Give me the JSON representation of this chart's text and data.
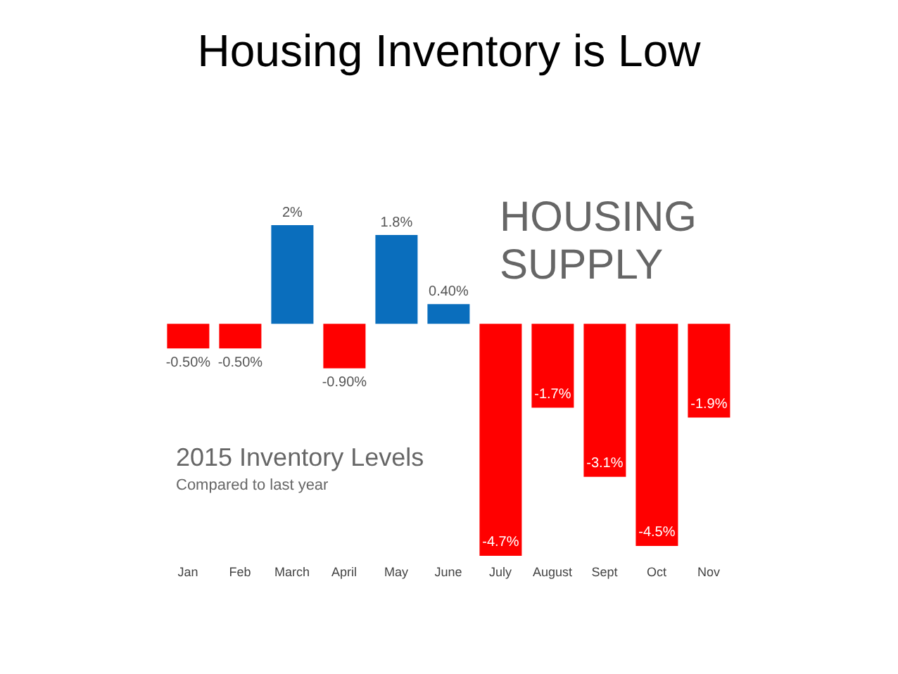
{
  "chart_data": {
    "type": "bar",
    "title": "Housing Inventory is Low",
    "categories": [
      "Jan",
      "Feb",
      "March",
      "April",
      "May",
      "June",
      "July",
      "August",
      "Sept",
      "Oct",
      "Nov"
    ],
    "values": [
      -0.5,
      -0.5,
      2,
      -0.9,
      1.8,
      0.4,
      -4.7,
      -1.7,
      -3.1,
      -4.5,
      -1.9
    ],
    "colors": [
      "#ff0000",
      "#ff0000",
      "#0a6ebd",
      "#ff0000",
      "#0a6ebd",
      "#0a6ebd",
      "#ff0000",
      "#ff0000",
      "#ff0000",
      "#ff0000",
      "#ff0000"
    ],
    "value_labels": [
      "-0.50%",
      "-0.50%",
      "2%",
      "-0.90%",
      "1.8%",
      "0.40%",
      "-4.7%",
      "-1.7%",
      "-3.1%",
      "-4.5%",
      "-1.9%"
    ],
    "annotations": [
      "HOUSING SUPPLY",
      "2015 Inventory Levels",
      "Compared to last year"
    ],
    "tick_labels": "x"
  }
}
